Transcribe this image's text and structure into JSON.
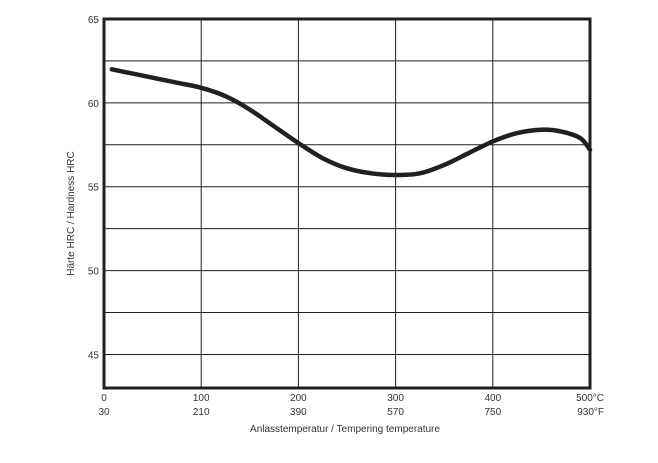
{
  "chart_data": {
    "type": "line",
    "title": "",
    "xlabel": "Anlasstemperatur / Tempering temperature",
    "ylabel": "Härte HRC / Hardness HRC",
    "xlim": [
      0,
      500
    ],
    "ylim": [
      43,
      65
    ],
    "grid": true,
    "x_ticks": [
      0,
      100,
      200,
      300,
      400,
      500
    ],
    "x_tick_labels_celsius": [
      "0",
      "100",
      "200",
      "300",
      "400",
      "500°C"
    ],
    "x_tick_labels_fahrenheit": [
      "30",
      "210",
      "390",
      "570",
      "750",
      "930°F"
    ],
    "y_ticks": [
      45,
      50,
      55,
      60,
      65
    ],
    "y_tick_labels": [
      "45",
      "50",
      "55",
      "60",
      "65"
    ],
    "series": [
      {
        "color": "#231f20",
        "x": [
          8,
          25,
          50,
          75,
          100,
          125,
          150,
          175,
          200,
          225,
          250,
          275,
          300,
          325,
          350,
          375,
          400,
          425,
          450,
          470,
          490,
          500
        ],
        "y": [
          62.0,
          61.8,
          61.5,
          61.2,
          60.9,
          60.4,
          59.6,
          58.6,
          57.6,
          56.7,
          56.1,
          55.8,
          55.7,
          55.8,
          56.3,
          57.0,
          57.7,
          58.2,
          58.4,
          58.3,
          57.9,
          57.2
        ]
      }
    ]
  }
}
